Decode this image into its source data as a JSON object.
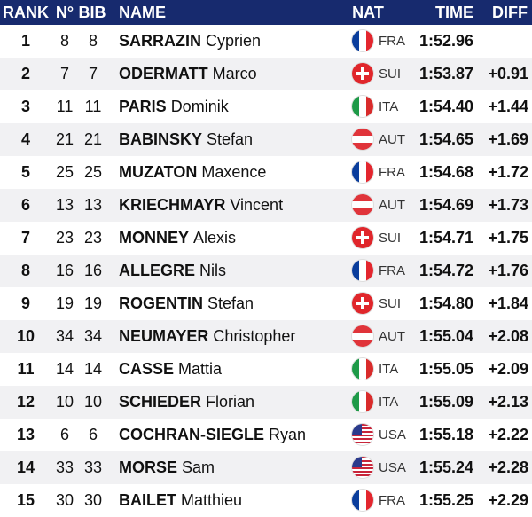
{
  "header": [
    "RANK",
    "N°",
    "BIB",
    "NAME",
    "NAT",
    "TIME",
    "DIFF"
  ],
  "rows": [
    {
      "rank": 1,
      "no": 8,
      "bib": 8,
      "surname": "SARRAZIN",
      "first": "Cyprien",
      "nat": "FRA",
      "time": "1:52.96"
    },
    {
      "rank": 2,
      "no": 7,
      "bib": 7,
      "surname": "ODERMATT",
      "first": "Marco",
      "nat": "SUI",
      "time": "1:53.87",
      "diff": "+0.91"
    },
    {
      "rank": 3,
      "no": 11,
      "bib": 11,
      "surname": "PARIS",
      "first": "Dominik",
      "nat": "ITA",
      "time": "1:54.40",
      "diff": "+1.44"
    },
    {
      "rank": 4,
      "no": 21,
      "bib": 21,
      "surname": "BABINSKY",
      "first": "Stefan",
      "nat": "AUT",
      "time": "1:54.65",
      "diff": "+1.69"
    },
    {
      "rank": 5,
      "no": 25,
      "bib": 25,
      "surname": "MUZATON",
      "first": "Maxence",
      "nat": "FRA",
      "time": "1:54.68",
      "diff": "+1.72"
    },
    {
      "rank": 6,
      "no": 13,
      "bib": 13,
      "surname": "KRIECHMAYR",
      "first": "Vincent",
      "nat": "AUT",
      "time": "1:54.69",
      "diff": "+1.73"
    },
    {
      "rank": 7,
      "no": 23,
      "bib": 23,
      "surname": "MONNEY",
      "first": "Alexis",
      "nat": "SUI",
      "time": "1:54.71",
      "diff": "+1.75"
    },
    {
      "rank": 8,
      "no": 16,
      "bib": 16,
      "surname": "ALLEGRE",
      "first": "Nils",
      "nat": "FRA",
      "time": "1:54.72",
      "diff": "+1.76"
    },
    {
      "rank": 9,
      "no": 19,
      "bib": 19,
      "surname": "ROGENTIN",
      "first": "Stefan",
      "nat": "SUI",
      "time": "1:54.80",
      "diff": "+1.84"
    },
    {
      "rank": 10,
      "no": 34,
      "bib": 34,
      "surname": "NEUMAYER",
      "first": "Christopher",
      "nat": "AUT",
      "time": "1:55.04",
      "diff": "+2.08"
    },
    {
      "rank": 11,
      "no": 14,
      "bib": 14,
      "surname": "CASSE",
      "first": "Mattia",
      "nat": "ITA",
      "time": "1:55.05",
      "diff": "+2.09"
    },
    {
      "rank": 12,
      "no": 10,
      "bib": 10,
      "surname": "SCHIEDER",
      "first": "Florian",
      "nat": "ITA",
      "time": "1:55.09",
      "diff": "+2.13"
    },
    {
      "rank": 13,
      "no": 6,
      "bib": 6,
      "surname": "COCHRAN-SIEGLE",
      "first": "Ryan",
      "nat": "USA",
      "time": "1:55.18",
      "diff": "+2.22"
    },
    {
      "rank": 14,
      "no": 33,
      "bib": 33,
      "surname": "MORSE",
      "first": "Sam",
      "nat": "USA",
      "time": "1:55.24",
      "diff": "+2.28"
    },
    {
      "rank": 15,
      "no": 30,
      "bib": 30,
      "surname": "BAILET",
      "first": "Matthieu",
      "nat": "FRA",
      "time": "1:55.25",
      "diff": "+2.29"
    }
  ]
}
